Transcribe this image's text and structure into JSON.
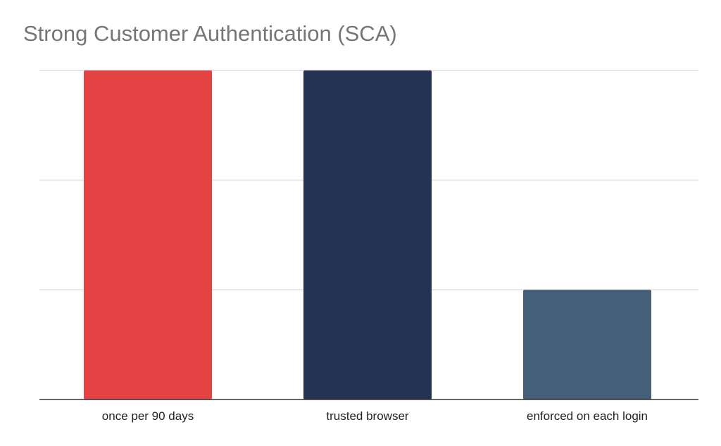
{
  "chart_data": {
    "type": "bar",
    "title": "Strong Customer Authentication (SCA)",
    "xlabel": "",
    "ylabel": "",
    "categories": [
      "once per 90 days",
      "trusted browser",
      "enforced on each login"
    ],
    "values": [
      3,
      3,
      1
    ],
    "colors": [
      "#e34343",
      "#243254",
      "#455e7a"
    ],
    "ylim": [
      0,
      3
    ],
    "grid": true,
    "legend": "none"
  }
}
